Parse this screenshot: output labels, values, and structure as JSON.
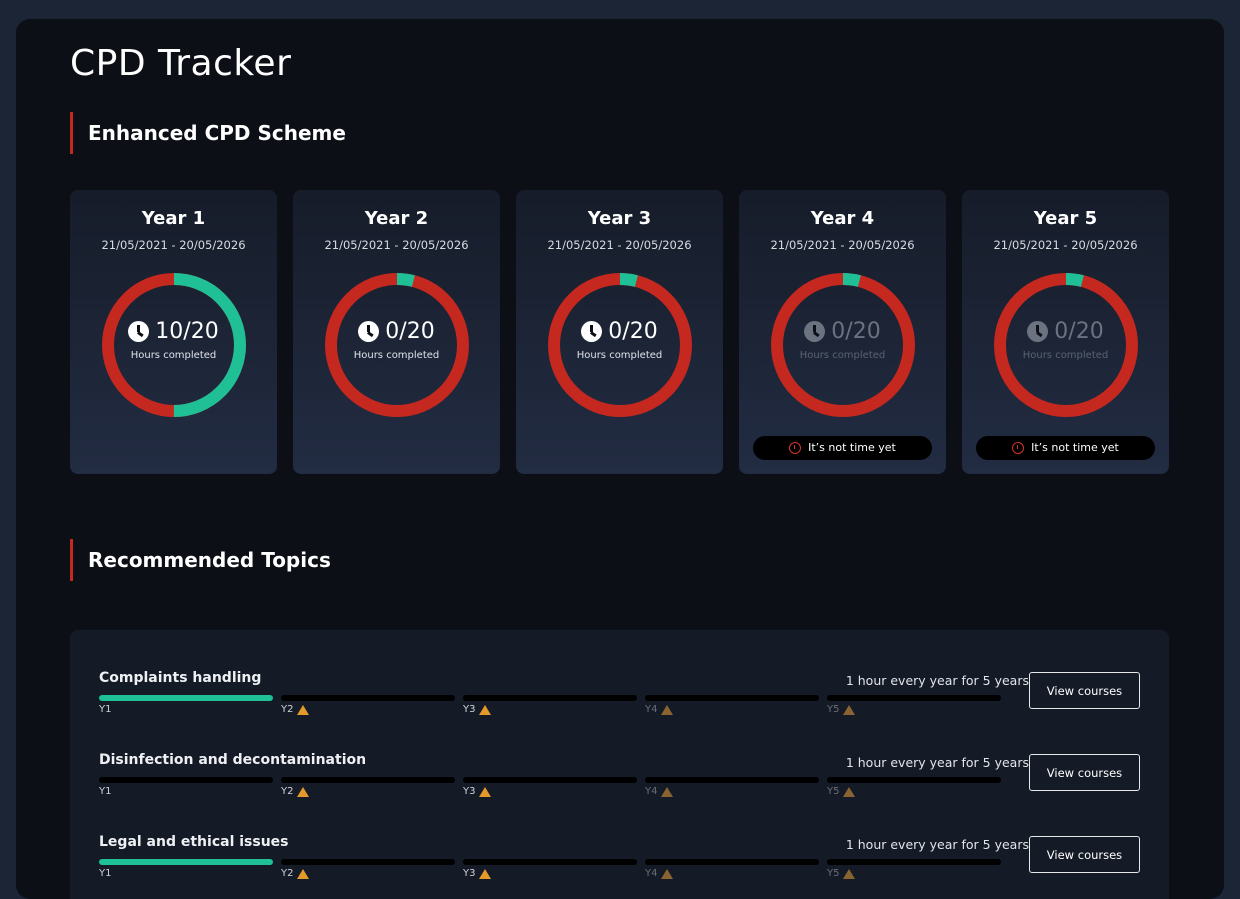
{
  "page_title": "CPD Tracker",
  "scheme_heading": "Enhanced CPD Scheme",
  "colors": {
    "complete": "#1fc095",
    "remaining": "#c4281f",
    "accent": "#c4281f"
  },
  "years": [
    {
      "label": "Year 1",
      "dates": "21/05/2021 - 20/05/2026",
      "hours": "10/20",
      "completed": 10,
      "required": 20,
      "caption": "Hours completed",
      "locked": false
    },
    {
      "label": "Year 2",
      "dates": "21/05/2021 - 20/05/2026",
      "hours": "0/20",
      "completed": 0,
      "required": 20,
      "caption": "Hours completed",
      "locked": false
    },
    {
      "label": "Year 3",
      "dates": "21/05/2021 - 20/05/2026",
      "hours": "0/20",
      "completed": 0,
      "required": 20,
      "caption": "Hours completed",
      "locked": false
    },
    {
      "label": "Year 4",
      "dates": "21/05/2021 - 20/05/2026",
      "hours": "0/20",
      "completed": 0,
      "required": 20,
      "caption": "Hours completed",
      "locked": true,
      "badge": "It’s not time yet"
    },
    {
      "label": "Year 5",
      "dates": "21/05/2021 - 20/05/2026",
      "hours": "0/20",
      "completed": 0,
      "required": 20,
      "caption": "Hours completed",
      "locked": true,
      "badge": "It’s not time yet"
    }
  ],
  "topics_heading": "Recommended Topics",
  "topics": [
    {
      "name": "Complaints handling",
      "requirement": "1 hour every year for 5 years",
      "button": "View courses",
      "segments": [
        {
          "label": "Y1",
          "done": true,
          "warn": false
        },
        {
          "label": "Y2",
          "done": false,
          "warn": true
        },
        {
          "label": "Y3",
          "done": false,
          "warn": true
        },
        {
          "label": "Y4",
          "done": false,
          "warn": true,
          "dim": true
        },
        {
          "label": "Y5",
          "done": false,
          "warn": true,
          "dim": true
        }
      ]
    },
    {
      "name": "Disinfection and decontamination",
      "requirement": "1 hour every year for 5 years",
      "button": "View courses",
      "segments": [
        {
          "label": "Y1",
          "done": false,
          "warn": false
        },
        {
          "label": "Y2",
          "done": false,
          "warn": true
        },
        {
          "label": "Y3",
          "done": false,
          "warn": true
        },
        {
          "label": "Y4",
          "done": false,
          "warn": true,
          "dim": true
        },
        {
          "label": "Y5",
          "done": false,
          "warn": true,
          "dim": true
        }
      ]
    },
    {
      "name": "Legal and ethical issues",
      "requirement": "1 hour every year for 5 years",
      "button": "View courses",
      "segments": [
        {
          "label": "Y1",
          "done": true,
          "warn": false
        },
        {
          "label": "Y2",
          "done": false,
          "warn": true
        },
        {
          "label": "Y3",
          "done": false,
          "warn": true
        },
        {
          "label": "Y4",
          "done": false,
          "warn": true,
          "dim": true
        },
        {
          "label": "Y5",
          "done": false,
          "warn": true,
          "dim": true
        }
      ]
    }
  ]
}
